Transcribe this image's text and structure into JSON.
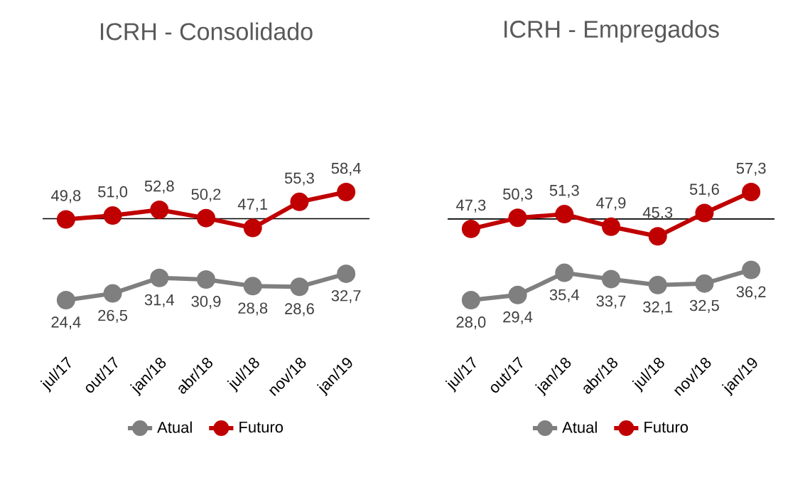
{
  "chart_data": [
    {
      "type": "line",
      "title": "ICRH - Consolidado",
      "categories": [
        "jul/17",
        "out/17",
        "jan/18",
        "abr/18",
        "jul/18",
        "nov/18",
        "jan/19"
      ],
      "tick_labels": "x",
      "legend": "bottom",
      "marker": "circle",
      "line_style": "solid",
      "ref_lines": [
        {
          "axis": "y",
          "value": 50,
          "color": "#000000"
        }
      ],
      "series": [
        {
          "name": "Atual",
          "color": "#7f7f7f",
          "values": [
            24.4,
            26.5,
            31.4,
            30.9,
            28.8,
            28.6,
            32.7
          ],
          "value_labels": [
            "24,4",
            "26,5",
            "31,4",
            "30,9",
            "28,8",
            "28,6",
            "32,7"
          ]
        },
        {
          "name": "Futuro",
          "color": "#c00000",
          "values": [
            49.8,
            51.0,
            52.8,
            50.2,
            47.1,
            55.3,
            58.4
          ],
          "value_labels": [
            "49,8",
            "51,0",
            "52,8",
            "50,2",
            "47,1",
            "55,3",
            "58,4"
          ]
        }
      ]
    },
    {
      "type": "line",
      "title": "ICRH - Empregados",
      "categories": [
        "jul/17",
        "out/17",
        "jan/18",
        "abr/18",
        "jul/18",
        "nov/18",
        "jan/19"
      ],
      "tick_labels": "x",
      "legend": "bottom",
      "marker": "circle",
      "line_style": "solid",
      "ref_lines": [
        {
          "axis": "y",
          "value": 50,
          "color": "#000000"
        }
      ],
      "series": [
        {
          "name": "Atual",
          "color": "#7f7f7f",
          "values": [
            28.0,
            29.4,
            35.4,
            33.7,
            32.1,
            32.5,
            36.2
          ],
          "value_labels": [
            "28,0",
            "29,4",
            "35,4",
            "33,7",
            "32,1",
            "32,5",
            "36,2"
          ]
        },
        {
          "name": "Futuro",
          "color": "#c00000",
          "values": [
            47.3,
            50.3,
            51.3,
            47.9,
            45.3,
            51.6,
            57.3
          ],
          "value_labels": [
            "47,3",
            "50,3",
            "51,3",
            "47,9",
            "45,3",
            "51,6",
            "57,3"
          ]
        }
      ]
    }
  ]
}
